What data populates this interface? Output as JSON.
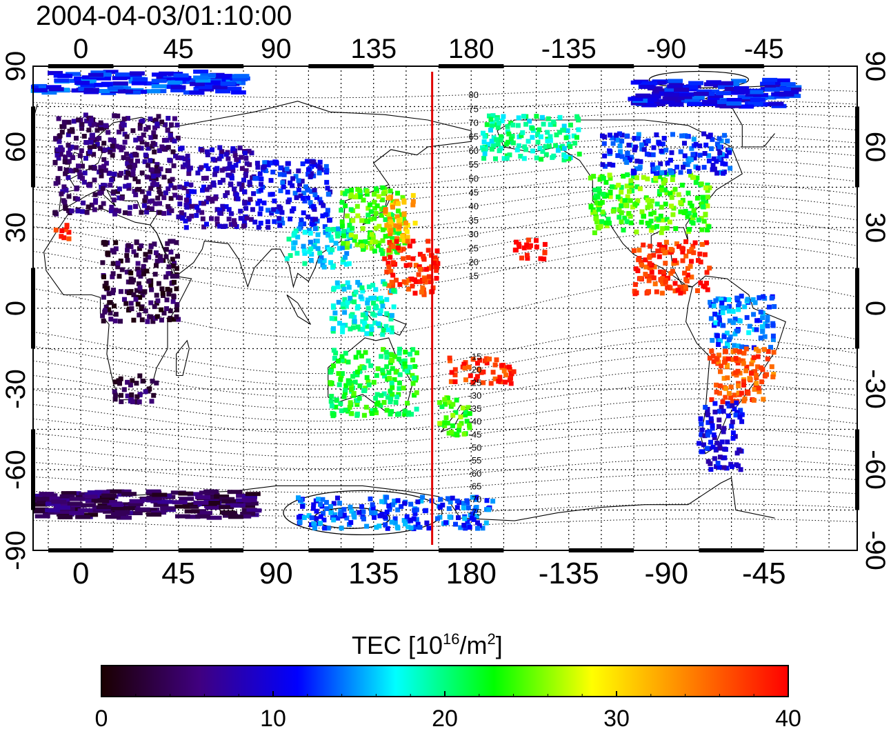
{
  "title": "2004-04-03/01:10:00",
  "map": {
    "lon_ticks": [
      0,
      45,
      90,
      135,
      180,
      -135,
      -90,
      -45
    ],
    "lat_ticks": [
      90,
      60,
      30,
      0,
      -30,
      -60,
      -90
    ],
    "lon_range": [
      -22,
      358
    ],
    "lat_range": [
      -90,
      90
    ],
    "meridian_line_lon": 162,
    "meridian_line_color": "#e00000",
    "contour_labels": [
      "80",
      "75",
      "70",
      "65",
      "60",
      "55",
      "50",
      "45",
      "40",
      "35",
      "30",
      "25",
      "20",
      "15",
      "-15",
      "-20",
      "-25",
      "-30",
      "-35",
      "-40",
      "-45",
      "-50",
      "-55",
      "-60",
      "-65",
      "-70",
      "-75"
    ]
  },
  "tec_regions": [
    {
      "name": "north-pole-band",
      "lon": [
        -20,
        75
      ],
      "lat": [
        80,
        88
      ],
      "tec": 12
    },
    {
      "name": "europe",
      "lon": [
        -12,
        45
      ],
      "lat": [
        35,
        72
      ],
      "tec": 5
    },
    {
      "name": "eurasia-west",
      "lon": [
        45,
        80
      ],
      "lat": [
        30,
        60
      ],
      "tec": 8
    },
    {
      "name": "central-asia",
      "lon": [
        80,
        115
      ],
      "lat": [
        30,
        55
      ],
      "tec": 11
    },
    {
      "name": "south-asia",
      "lon": [
        95,
        125
      ],
      "lat": [
        15,
        30
      ],
      "tec": 17
    },
    {
      "name": "east-asia",
      "lon": [
        120,
        150
      ],
      "lat": [
        20,
        45
      ],
      "tec": 24
    },
    {
      "name": "japan-east",
      "lon": [
        140,
        155
      ],
      "lat": [
        25,
        42
      ],
      "tec": 32
    },
    {
      "name": "west-pacific",
      "lon": [
        140,
        165
      ],
      "lat": [
        5,
        25
      ],
      "tec": 38
    },
    {
      "name": "indonesia",
      "lon": [
        115,
        145
      ],
      "lat": [
        -10,
        10
      ],
      "tec": 18
    },
    {
      "name": "australia",
      "lon": [
        115,
        155
      ],
      "lat": [
        -40,
        -15
      ],
      "tec": 22
    },
    {
      "name": "new-zealand",
      "lon": [
        165,
        180
      ],
      "lat": [
        -48,
        -33
      ],
      "tec": 24
    },
    {
      "name": "south-pacific",
      "lon": [
        170,
        200
      ],
      "lat": [
        -28,
        -18
      ],
      "tec": 38
    },
    {
      "name": "north-pacific",
      "lon": [
        200,
        215
      ],
      "lat": [
        18,
        26
      ],
      "tec": 40
    },
    {
      "name": "alaska",
      "lon": [
        185,
        230
      ],
      "lat": [
        55,
        72
      ],
      "tec": 19
    },
    {
      "name": "north-america",
      "lon": [
        235,
        290
      ],
      "lat": [
        28,
        50
      ],
      "tec": 24
    },
    {
      "name": "canada",
      "lon": [
        240,
        300
      ],
      "lat": [
        50,
        65
      ],
      "tec": 12
    },
    {
      "name": "greenland-arctic",
      "lon": [
        255,
        330
      ],
      "lat": [
        75,
        85
      ],
      "tec": 11
    },
    {
      "name": "central-america",
      "lon": [
        255,
        290
      ],
      "lat": [
        5,
        25
      ],
      "tec": 38
    },
    {
      "name": "south-america-north",
      "lon": [
        290,
        320
      ],
      "lat": [
        -15,
        5
      ],
      "tec": 14
    },
    {
      "name": "south-america-south",
      "lon": [
        290,
        320
      ],
      "lat": [
        -35,
        -15
      ],
      "tec": 36
    },
    {
      "name": "patagonia",
      "lon": [
        285,
        305
      ],
      "lat": [
        -60,
        -35
      ],
      "tec": 10
    },
    {
      "name": "africa-north",
      "lon": [
        10,
        45
      ],
      "lat": [
        -5,
        25
      ],
      "tec": 3
    },
    {
      "name": "africa-south",
      "lon": [
        15,
        35
      ],
      "lat": [
        -35,
        -25
      ],
      "tec": 4
    },
    {
      "name": "antarctic-band",
      "lon": [
        -20,
        80
      ],
      "lat": [
        -78,
        -68
      ],
      "tec": 4
    },
    {
      "name": "antarctic-pacific",
      "lon": [
        100,
        190
      ],
      "lat": [
        -82,
        -70
      ],
      "tec": 13
    },
    {
      "name": "iberia",
      "lon": [
        -12,
        -5
      ],
      "lat": [
        25,
        32
      ],
      "tec": 38
    }
  ],
  "colorbar": {
    "label": "TEC  [10",
    "label_sup": "16",
    "label_mid": "/m",
    "label_sup2": "2",
    "label_end": "]",
    "ticks": [
      "0",
      "10",
      "20",
      "30",
      "40"
    ],
    "min": 0,
    "max": 40,
    "stops": [
      "#1a0000",
      "#400080",
      "#0000ff",
      "#00ffff",
      "#00ff00",
      "#ffff00",
      "#ff8000",
      "#ff0000"
    ]
  }
}
